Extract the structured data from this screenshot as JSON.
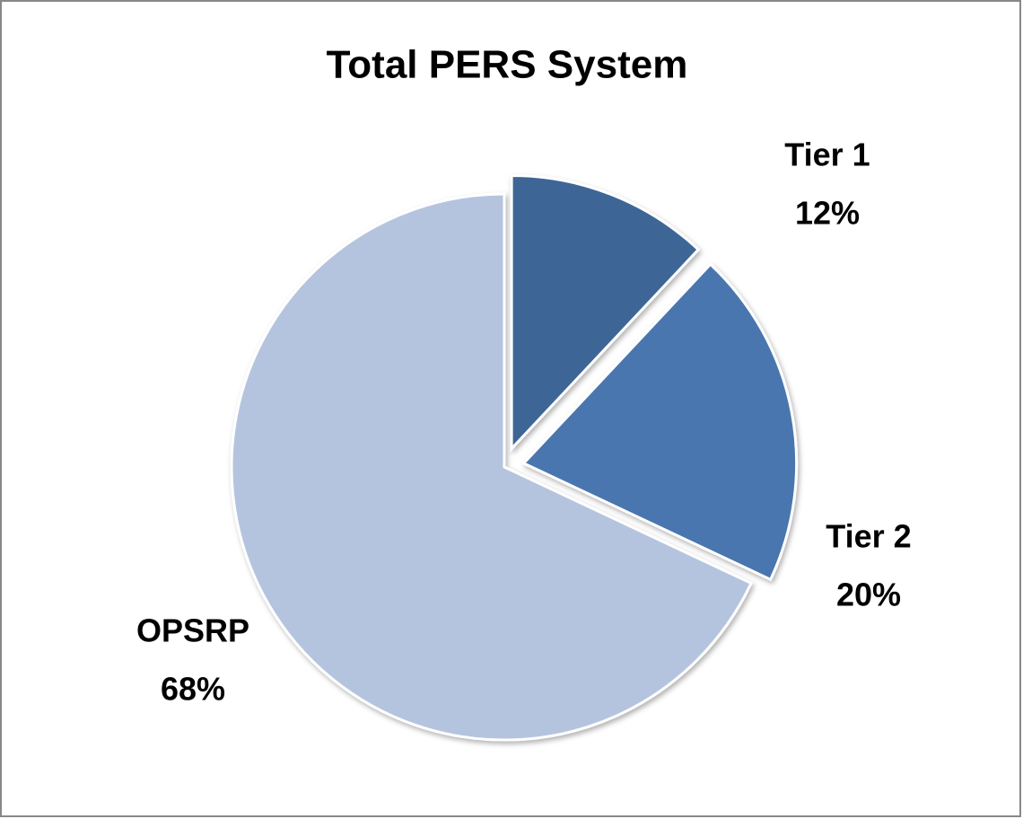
{
  "chart_data": {
    "type": "pie",
    "title": "Total PERS System",
    "categories": [
      "Tier 1",
      "Tier 2",
      "OPSRP"
    ],
    "values": [
      12,
      20,
      68
    ],
    "value_labels": [
      "12%",
      "20%",
      "68%"
    ],
    "colors": [
      "#3d6696",
      "#4876ae",
      "#b5c4de"
    ],
    "exploded": [
      true,
      true,
      false
    ]
  }
}
